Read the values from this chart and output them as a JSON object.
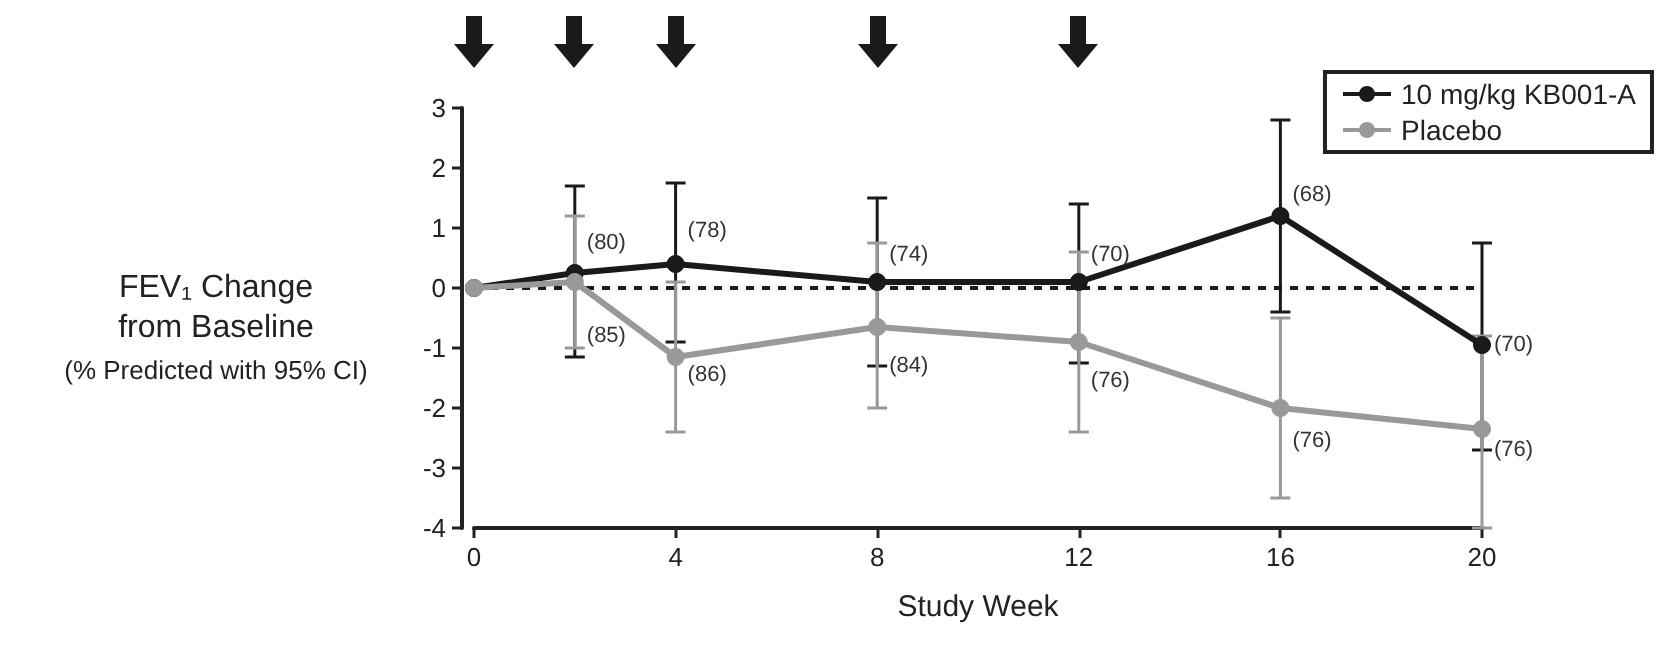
{
  "chart_data": {
    "type": "line",
    "xlabel": "Study Week",
    "ylabel": "FEV₁ Change\nfrom Baseline\n(% Predicted with 95% CI)",
    "x": [
      0,
      2,
      4,
      8,
      12,
      16,
      20
    ],
    "xlim": [
      0,
      20
    ],
    "xticks": [
      0,
      4,
      8,
      12,
      16,
      20
    ],
    "ylim": [
      -4,
      3
    ],
    "yticks": [
      -4,
      -3,
      -2,
      -1,
      0,
      1,
      2,
      3
    ],
    "series": [
      {
        "name": "10 mg/kg KB001-A",
        "color": "#1a1a1a",
        "values": [
          0,
          0.25,
          0.4,
          0.1,
          0.1,
          1.2,
          -0.95
        ],
        "errors": [
          null,
          [
            -1.15,
            1.7
          ],
          [
            -0.9,
            1.75
          ],
          [
            -1.3,
            1.5
          ],
          [
            -1.25,
            1.4
          ],
          [
            -0.4,
            2.8
          ],
          [
            -2.7,
            0.75
          ]
        ]
      },
      {
        "name": "Placebo",
        "color": "#999999",
        "values": [
          0,
          0.1,
          -1.15,
          -0.65,
          -0.9,
          -2.0,
          -2.35
        ],
        "errors": [
          null,
          [
            -1.0,
            1.2
          ],
          [
            -2.4,
            0.1
          ],
          [
            -2.0,
            0.75
          ],
          [
            -2.4,
            0.6
          ],
          [
            -3.5,
            -0.5
          ],
          [
            -4.0,
            -0.8
          ]
        ]
      }
    ],
    "annotations": [
      {
        "text": "(80)",
        "x": 2,
        "y": 0.75
      },
      {
        "text": "(85)",
        "x": 2,
        "y": -0.8
      },
      {
        "text": "(78)",
        "x": 4,
        "y": 0.95
      },
      {
        "text": "(86)",
        "x": 4,
        "y": -1.45
      },
      {
        "text": "(74)",
        "x": 8,
        "y": 0.55
      },
      {
        "text": "(84)",
        "x": 8,
        "y": -1.3
      },
      {
        "text": "(70)",
        "x": 12,
        "y": 0.55
      },
      {
        "text": "(76)",
        "x": 12,
        "y": -1.55
      },
      {
        "text": "(68)",
        "x": 16,
        "y": 1.55
      },
      {
        "text": "(76)",
        "x": 16,
        "y": -2.55
      },
      {
        "text": "(70)",
        "x": 20,
        "y": -0.95
      },
      {
        "text": "(76)",
        "x": 20,
        "y": -2.7
      }
    ],
    "ref_lines": [
      {
        "axis": "y",
        "value": 0,
        "line_style": "dotted",
        "color": "#1a1a1a"
      }
    ],
    "grid": false,
    "legend": "top right",
    "marker": "circle",
    "line_style": "solid"
  }
}
